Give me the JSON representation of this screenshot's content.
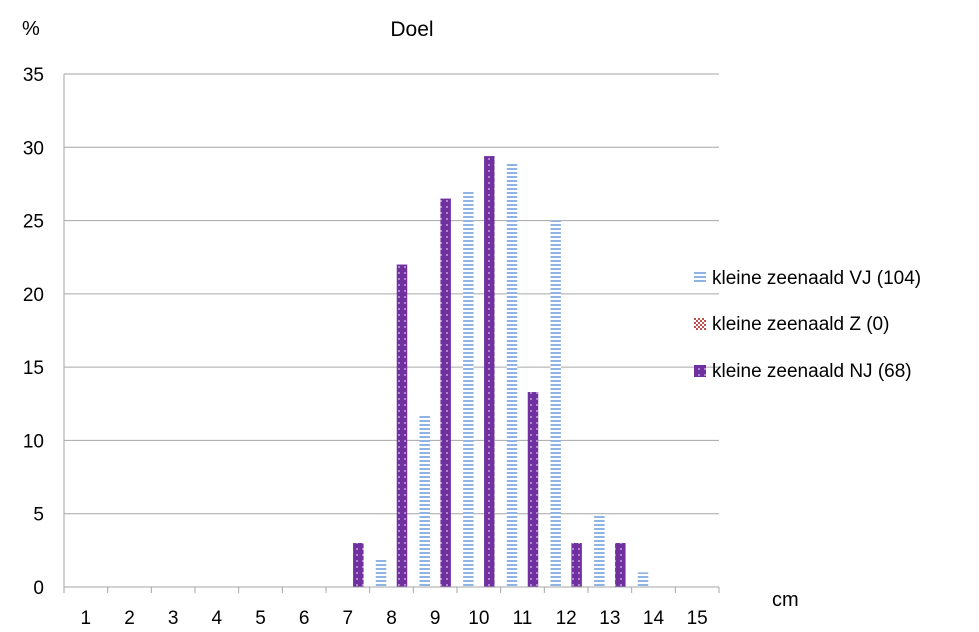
{
  "chart_data": {
    "type": "bar",
    "title": "Doel",
    "xlabel": "cm",
    "ylabel": "%",
    "categories": [
      "1",
      "2",
      "3",
      "4",
      "5",
      "6",
      "7",
      "8",
      "9",
      "10",
      "11",
      "12",
      "13",
      "14",
      "15"
    ],
    "ylim": [
      0,
      35
    ],
    "yticks": [
      "0",
      "5",
      "10",
      "15",
      "20",
      "25",
      "30",
      "35"
    ],
    "grid": true,
    "legend_position": "right",
    "series": [
      {
        "name": "kleine zeenaald VJ (104)",
        "color": "#8fb4e3",
        "pattern": "horizontal-lines",
        "values": [
          0,
          0,
          0,
          0,
          0,
          0,
          0,
          1.9,
          11.7,
          27,
          28.9,
          25,
          4.9,
          1,
          0
        ]
      },
      {
        "name": "kleine zeenaald Z (0)",
        "color": "#c0504d",
        "pattern": "checker",
        "values": [
          0,
          0,
          0,
          0,
          0,
          0,
          0,
          0,
          0,
          0,
          0,
          0,
          0,
          0,
          0
        ]
      },
      {
        "name": "kleine zeenaald NJ (68)",
        "color": "#7030a0",
        "pattern": "dots",
        "values": [
          0,
          0,
          0,
          0,
          0,
          0,
          3,
          22,
          26.5,
          29.4,
          13.3,
          3,
          3,
          0,
          0
        ]
      }
    ]
  }
}
